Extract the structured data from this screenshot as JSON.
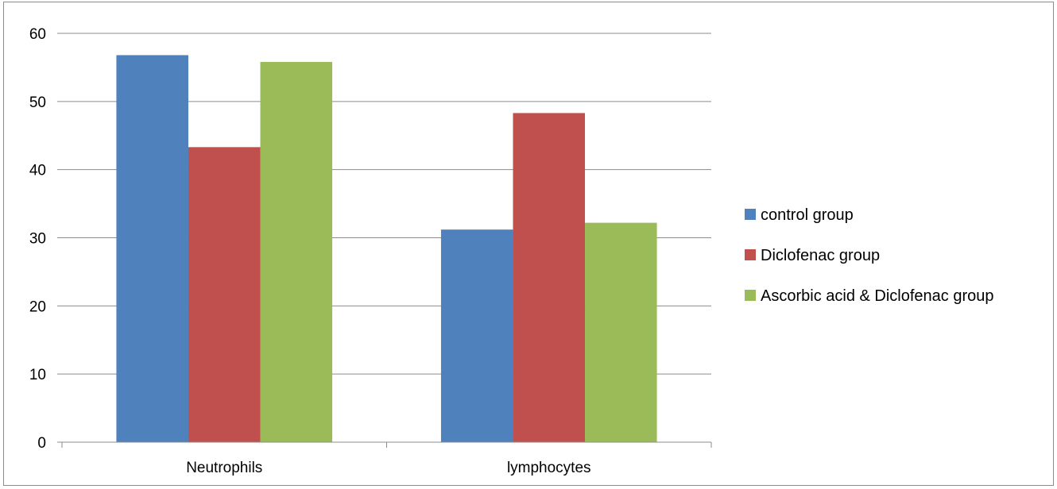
{
  "chart_data": {
    "type": "bar",
    "categories": [
      "Neutrophils",
      "lymphocytes"
    ],
    "series": [
      {
        "name": "control  group",
        "color": "#4f81bd",
        "values": [
          56.8,
          31.2
        ]
      },
      {
        "name": "Diclofenac group",
        "color": "#c0504d",
        "values": [
          43.3,
          48.3
        ]
      },
      {
        "name": "Ascorbic acid & Diclofenac group",
        "color": "#9bbb59",
        "values": [
          55.8,
          32.2
        ]
      }
    ],
    "yticks": [
      "0",
      "10",
      "20",
      "30",
      "40",
      "50",
      "60"
    ],
    "ylim": [
      0,
      60
    ],
    "grid": true,
    "legend": "right"
  }
}
